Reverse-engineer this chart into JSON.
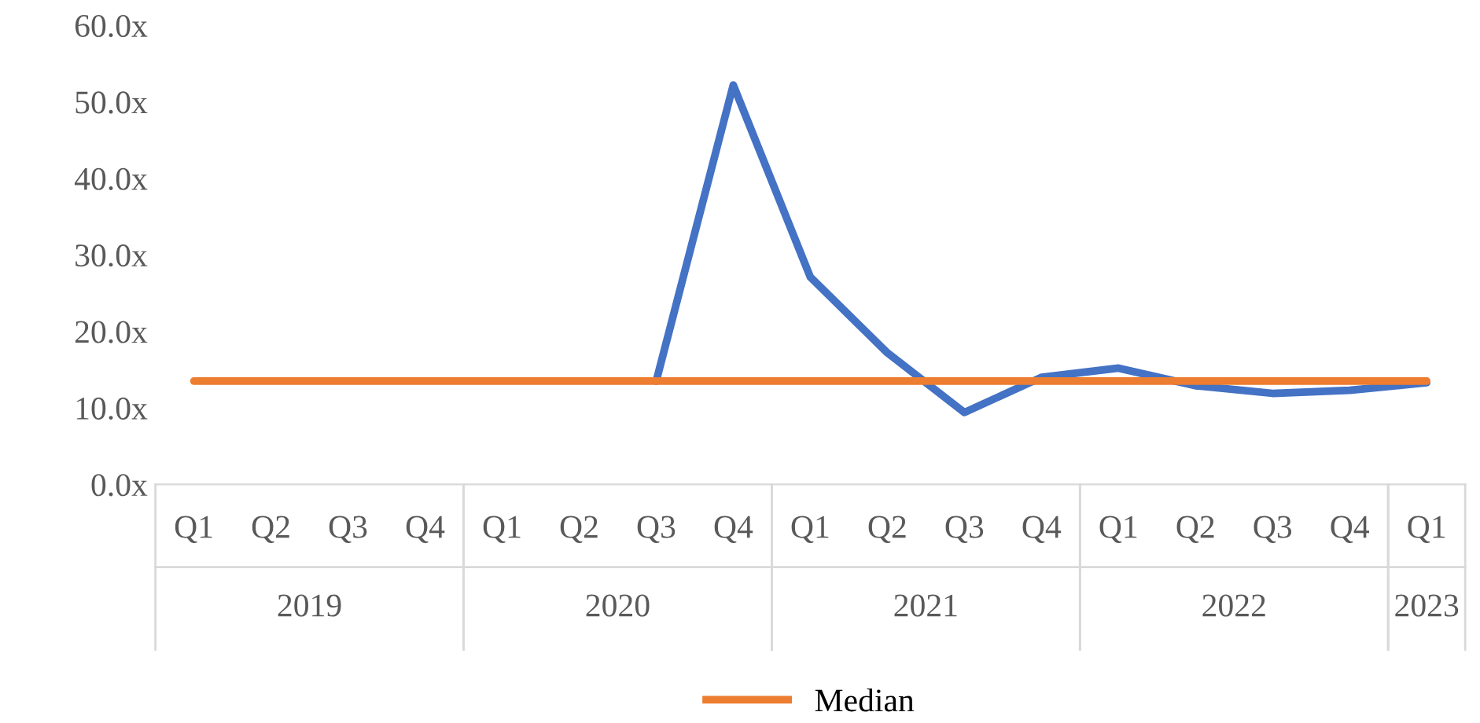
{
  "chart_data": {
    "type": "line",
    "categories": [
      "Q1",
      "Q2",
      "Q3",
      "Q4",
      "Q1",
      "Q2",
      "Q3",
      "Q4",
      "Q1",
      "Q2",
      "Q3",
      "Q4",
      "Q1",
      "Q2",
      "Q3",
      "Q4",
      "Q1"
    ],
    "series": [
      {
        "color": "#4472c4",
        "values": [
          null,
          null,
          null,
          null,
          null,
          null,
          13.5,
          52.2,
          27.1,
          17.2,
          9.4,
          14.0,
          15.2,
          12.9,
          11.9,
          12.3,
          13.3
        ]
      },
      {
        "name": "Median",
        "color": "#ed7d31",
        "values": [
          13.5,
          13.5,
          13.5,
          13.5,
          13.5,
          13.5,
          13.5,
          13.5,
          13.5,
          13.5,
          13.5,
          13.5,
          13.5,
          13.5,
          13.5,
          13.5,
          13.5
        ]
      }
    ],
    "annotations": [
      "2019",
      "2020",
      "2021",
      "2022",
      "2023"
    ],
    "ylim": [
      0,
      60
    ],
    "yticks": [
      {
        "value": 0,
        "label": "0.0x"
      },
      {
        "value": 10,
        "label": "10.0x"
      },
      {
        "value": 20,
        "label": "20.0x"
      },
      {
        "value": 30,
        "label": "30.0x"
      },
      {
        "value": 40,
        "label": "40.0x"
      },
      {
        "value": 50,
        "label": "50.0x"
      },
      {
        "value": 60,
        "label": "60.0x"
      }
    ],
    "grid": false,
    "legend": "bottom",
    "marker": "none",
    "line_style": "solid"
  }
}
